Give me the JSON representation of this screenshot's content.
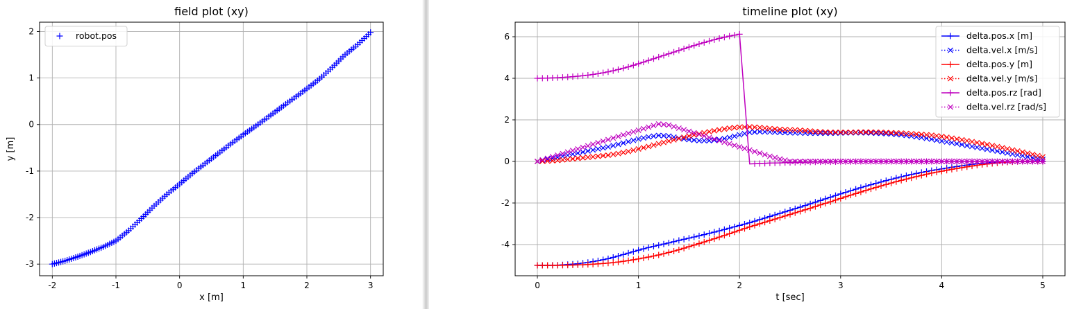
{
  "chart_data": [
    {
      "type": "scatter",
      "title": "field plot (xy)",
      "xlabel": "x [m]",
      "ylabel": "y [m]",
      "xlim": [
        -2.2,
        3.2
      ],
      "ylim": [
        -3.25,
        2.2
      ],
      "xticks": [
        -2,
        -1,
        0,
        1,
        2,
        3
      ],
      "yticks": [
        -3,
        -2,
        -1,
        0,
        1,
        2
      ],
      "grid": true,
      "legend_position": "top-left",
      "series": [
        {
          "name": "robot.pos",
          "color": "#0000ff",
          "marker": "+",
          "line": "none",
          "x": [
            -2.0,
            -1.8,
            -1.6,
            -1.4,
            -1.2,
            -1.0,
            -0.8,
            -0.6,
            -0.4,
            -0.2,
            0.0,
            0.2,
            0.4,
            0.6,
            0.8,
            1.0,
            1.2,
            1.4,
            1.6,
            1.8,
            2.0,
            2.2,
            2.4,
            2.6,
            2.8,
            3.0
          ],
          "y": [
            -3.0,
            -2.93,
            -2.84,
            -2.74,
            -2.63,
            -2.5,
            -2.28,
            -2.02,
            -1.75,
            -1.5,
            -1.28,
            -1.05,
            -0.84,
            -0.63,
            -0.42,
            -0.22,
            -0.03,
            0.17,
            0.37,
            0.57,
            0.77,
            0.98,
            1.23,
            1.5,
            1.72,
            1.98
          ]
        }
      ]
    },
    {
      "type": "line",
      "title": "timeline plot (xy)",
      "xlabel": "t [sec]",
      "ylabel": "",
      "xlim": [
        -0.22,
        5.22
      ],
      "ylim": [
        -5.5,
        6.7
      ],
      "xticks": [
        0,
        1,
        2,
        3,
        4,
        5
      ],
      "yticks": [
        -4,
        -2,
        0,
        2,
        4,
        6
      ],
      "grid": true,
      "legend_position": "top-right",
      "x": [
        0.0,
        0.1,
        0.2,
        0.3,
        0.4,
        0.5,
        0.6,
        0.7,
        0.8,
        0.9,
        1.0,
        1.1,
        1.2,
        1.3,
        1.4,
        1.5,
        1.6,
        1.7,
        1.8,
        1.9,
        2.0,
        2.1,
        2.2,
        2.3,
        2.4,
        2.5,
        2.6,
        2.7,
        2.8,
        2.9,
        3.0,
        3.1,
        3.2,
        3.3,
        3.4,
        3.5,
        3.6,
        3.7,
        3.8,
        3.9,
        4.0,
        4.1,
        4.2,
        4.3,
        4.4,
        4.5,
        4.6,
        4.7,
        4.8,
        4.9,
        5.0
      ],
      "series": [
        {
          "name": "delta.pos.x [m]",
          "color": "#0000ff",
          "marker": "+",
          "line": "solid",
          "values": [
            -5.0,
            -5.0,
            -4.99,
            -4.96,
            -4.92,
            -4.86,
            -4.78,
            -4.68,
            -4.55,
            -4.41,
            -4.27,
            -4.14,
            -4.03,
            -3.92,
            -3.8,
            -3.69,
            -3.58,
            -3.46,
            -3.34,
            -3.21,
            -3.08,
            -2.95,
            -2.8,
            -2.65,
            -2.5,
            -2.35,
            -2.2,
            -2.04,
            -1.88,
            -1.72,
            -1.56,
            -1.41,
            -1.26,
            -1.12,
            -0.99,
            -0.86,
            -0.74,
            -0.63,
            -0.53,
            -0.44,
            -0.36,
            -0.28,
            -0.21,
            -0.14,
            -0.09,
            -0.05,
            -0.02,
            0.0,
            0.0,
            0.0,
            0.0
          ]
        },
        {
          "name": "delta.vel.x [m/s]",
          "color": "#0000ff",
          "marker": "x",
          "line": "dotted",
          "values": [
            0.0,
            0.1,
            0.2,
            0.3,
            0.4,
            0.5,
            0.6,
            0.7,
            0.82,
            0.95,
            1.08,
            1.18,
            1.25,
            1.22,
            1.12,
            1.05,
            1.0,
            1.0,
            1.05,
            1.15,
            1.28,
            1.4,
            1.43,
            1.42,
            1.4,
            1.38,
            1.37,
            1.36,
            1.36,
            1.36,
            1.37,
            1.38,
            1.38,
            1.37,
            1.35,
            1.32,
            1.28,
            1.22,
            1.15,
            1.07,
            0.98,
            0.9,
            0.81,
            0.72,
            0.63,
            0.54,
            0.45,
            0.36,
            0.27,
            0.18,
            0.1
          ]
        },
        {
          "name": "delta.pos.y [m]",
          "color": "#ff0000",
          "marker": "+",
          "line": "solid",
          "values": [
            -5.0,
            -5.0,
            -5.0,
            -4.99,
            -4.98,
            -4.96,
            -4.93,
            -4.89,
            -4.84,
            -4.77,
            -4.69,
            -4.6,
            -4.5,
            -4.38,
            -4.25,
            -4.1,
            -3.95,
            -3.8,
            -3.64,
            -3.48,
            -3.31,
            -3.15,
            -3.0,
            -2.85,
            -2.7,
            -2.55,
            -2.4,
            -2.25,
            -2.09,
            -1.94,
            -1.78,
            -1.62,
            -1.47,
            -1.32,
            -1.18,
            -1.04,
            -0.91,
            -0.79,
            -0.67,
            -0.56,
            -0.47,
            -0.38,
            -0.3,
            -0.22,
            -0.15,
            -0.1,
            -0.05,
            -0.02,
            0.0,
            0.0,
            0.0
          ]
        },
        {
          "name": "delta.vel.y [m/s]",
          "color": "#ff0000",
          "marker": "x",
          "line": "dotted",
          "values": [
            0.0,
            0.02,
            0.05,
            0.1,
            0.15,
            0.2,
            0.25,
            0.3,
            0.38,
            0.48,
            0.6,
            0.72,
            0.85,
            0.98,
            1.1,
            1.22,
            1.33,
            1.43,
            1.52,
            1.6,
            1.65,
            1.66,
            1.63,
            1.58,
            1.54,
            1.52,
            1.5,
            1.46,
            1.42,
            1.4,
            1.4,
            1.4,
            1.41,
            1.41,
            1.4,
            1.38,
            1.36,
            1.33,
            1.3,
            1.26,
            1.2,
            1.12,
            1.04,
            0.95,
            0.86,
            0.76,
            0.66,
            0.55,
            0.45,
            0.34,
            0.22
          ]
        },
        {
          "name": "delta.pos.rz [rad]",
          "color": "#bf00bf",
          "marker": "+",
          "line": "solid",
          "values": [
            4.0,
            4.01,
            4.03,
            4.06,
            4.1,
            4.15,
            4.22,
            4.31,
            4.42,
            4.55,
            4.7,
            4.86,
            5.02,
            5.18,
            5.34,
            5.5,
            5.65,
            5.79,
            5.92,
            6.03,
            6.12,
            -0.12,
            -0.1,
            -0.08,
            -0.07,
            -0.05,
            -0.04,
            -0.03,
            -0.02,
            -0.02,
            -0.01,
            -0.01,
            0.0,
            0.0,
            0.0,
            0.0,
            0.0,
            0.0,
            0.0,
            0.0,
            0.0,
            0.0,
            0.0,
            0.0,
            0.0,
            0.0,
            0.0,
            0.0,
            0.0,
            0.0,
            0.0
          ]
        },
        {
          "name": "delta.vel.rz [rad/s]",
          "color": "#bf00bf",
          "marker": "x",
          "line": "dotted",
          "values": [
            0.0,
            0.15,
            0.3,
            0.45,
            0.6,
            0.75,
            0.9,
            1.05,
            1.2,
            1.35,
            1.5,
            1.65,
            1.8,
            1.75,
            1.6,
            1.45,
            1.3,
            1.15,
            1.0,
            0.85,
            0.7,
            0.55,
            0.4,
            0.25,
            0.12,
            0.0,
            0.0,
            0.0,
            0.0,
            0.0,
            0.0,
            0.0,
            0.0,
            0.0,
            0.0,
            0.0,
            0.0,
            0.0,
            0.0,
            0.0,
            0.0,
            0.0,
            0.0,
            0.0,
            0.0,
            0.0,
            0.0,
            0.0,
            0.0,
            0.0,
            0.0
          ]
        }
      ]
    }
  ]
}
